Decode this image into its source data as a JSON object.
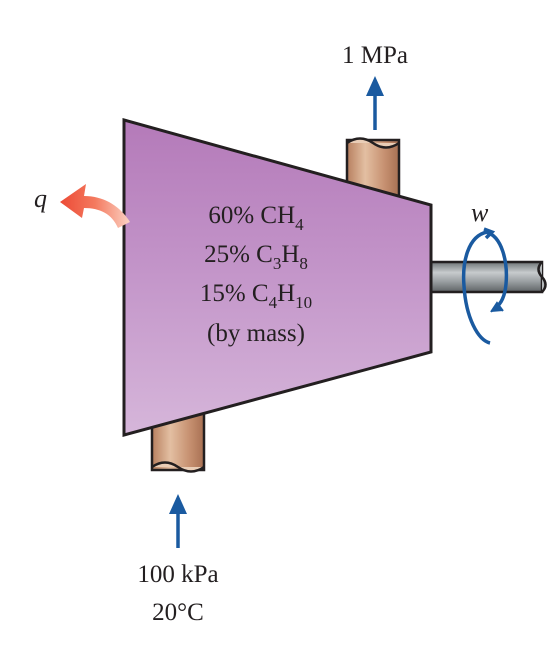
{
  "outlet": {
    "pressure": "1 MPa"
  },
  "inlet": {
    "pressure": "100 kPa",
    "temperature": "20°C"
  },
  "heat_label": "q",
  "work_label": "w",
  "mixture": {
    "lines": [
      {
        "pct": "60% CH",
        "s1": "4",
        "mid": "",
        "s2": ""
      },
      {
        "pct": "25% C",
        "s1": "3",
        "mid": "H",
        "s2": "8"
      },
      {
        "pct": "15% C",
        "s1": "4",
        "mid": "H",
        "s2": "10"
      }
    ],
    "basis": "(by mass)"
  },
  "colors": {
    "body_top": "#b87fc0",
    "body_bottom": "#d3b1d8",
    "pipe": "#c99473",
    "shaft": "#8e9396",
    "flow_arrow": "#1a5aa0",
    "heat_arrow": "#ef5a44"
  }
}
